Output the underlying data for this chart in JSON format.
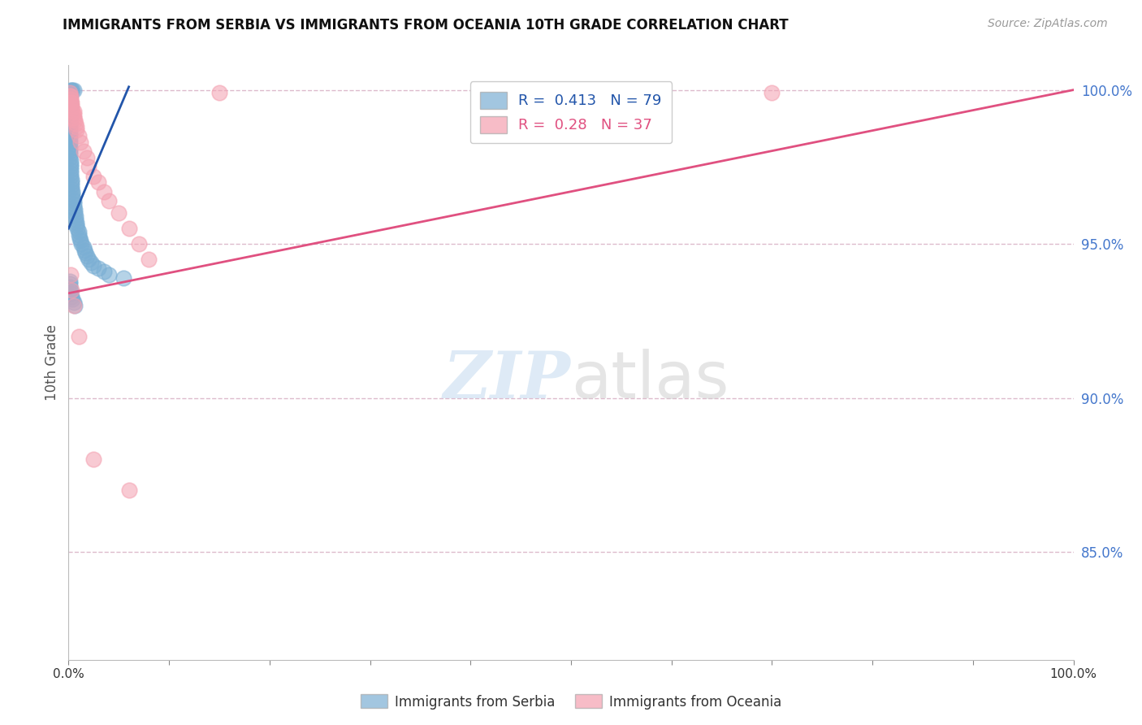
{
  "title": "IMMIGRANTS FROM SERBIA VS IMMIGRANTS FROM OCEANIA 10TH GRADE CORRELATION CHART",
  "source": "Source: ZipAtlas.com",
  "ylabel": "10th Grade",
  "xlim": [
    0,
    1.0
  ],
  "ylim": [
    0.815,
    1.008
  ],
  "yticks": [
    0.85,
    0.9,
    0.95,
    1.0
  ],
  "ytick_labels": [
    "85.0%",
    "90.0%",
    "95.0%",
    "100.0%"
  ],
  "xticks": [
    0.0,
    0.1,
    0.2,
    0.3,
    0.4,
    0.5,
    0.6,
    0.7,
    0.8,
    0.9,
    1.0
  ],
  "xtick_labels_show": [
    "0.0%",
    "",
    "",
    "",
    "",
    "",
    "",
    "",
    "",
    "",
    "100.0%"
  ],
  "serbia_R": 0.413,
  "serbia_N": 79,
  "oceania_R": 0.28,
  "oceania_N": 37,
  "serbia_color": "#7bafd4",
  "oceania_color": "#f4a0b0",
  "blue_line_color": "#2255aa",
  "pink_line_color": "#e05080",
  "grid_color": "#ddbbcc",
  "serbia_x": [
    0.002,
    0.003,
    0.004,
    0.005,
    0.001,
    0.001,
    0.001,
    0.001,
    0.001,
    0.001,
    0.001,
    0.001,
    0.001,
    0.001,
    0.001,
    0.001,
    0.001,
    0.001,
    0.001,
    0.001,
    0.001,
    0.001,
    0.001,
    0.001,
    0.001,
    0.001,
    0.001,
    0.001,
    0.001,
    0.001,
    0.001,
    0.002,
    0.002,
    0.002,
    0.002,
    0.002,
    0.002,
    0.003,
    0.003,
    0.003,
    0.003,
    0.004,
    0.004,
    0.004,
    0.005,
    0.005,
    0.005,
    0.006,
    0.006,
    0.007,
    0.007,
    0.008,
    0.008,
    0.009,
    0.01,
    0.01,
    0.011,
    0.012,
    0.013,
    0.015,
    0.016,
    0.017,
    0.018,
    0.02,
    0.022,
    0.025,
    0.03,
    0.035,
    0.04,
    0.055,
    0.001,
    0.001,
    0.001,
    0.002,
    0.002,
    0.003,
    0.004,
    0.005,
    0.006
  ],
  "serbia_y": [
    1.0,
    1.0,
    1.0,
    1.0,
    0.999,
    0.999,
    0.998,
    0.998,
    0.997,
    0.997,
    0.996,
    0.996,
    0.995,
    0.995,
    0.994,
    0.993,
    0.992,
    0.991,
    0.99,
    0.989,
    0.988,
    0.987,
    0.986,
    0.985,
    0.984,
    0.983,
    0.982,
    0.981,
    0.98,
    0.979,
    0.978,
    0.977,
    0.976,
    0.975,
    0.974,
    0.973,
    0.972,
    0.971,
    0.97,
    0.969,
    0.968,
    0.967,
    0.966,
    0.965,
    0.964,
    0.963,
    0.962,
    0.961,
    0.96,
    0.959,
    0.958,
    0.957,
    0.956,
    0.955,
    0.954,
    0.953,
    0.952,
    0.951,
    0.95,
    0.949,
    0.948,
    0.947,
    0.946,
    0.945,
    0.944,
    0.943,
    0.942,
    0.941,
    0.94,
    0.939,
    0.938,
    0.937,
    0.936,
    0.935,
    0.934,
    0.933,
    0.932,
    0.931,
    0.93
  ],
  "oceania_x": [
    0.001,
    0.001,
    0.002,
    0.002,
    0.002,
    0.003,
    0.003,
    0.003,
    0.004,
    0.005,
    0.005,
    0.005,
    0.006,
    0.007,
    0.008,
    0.008,
    0.01,
    0.012,
    0.015,
    0.018,
    0.02,
    0.025,
    0.03,
    0.035,
    0.04,
    0.05,
    0.06,
    0.07,
    0.08,
    0.002,
    0.003,
    0.005,
    0.01,
    0.025,
    0.06,
    0.15,
    0.7
  ],
  "oceania_y": [
    0.999,
    0.998,
    0.998,
    0.997,
    0.996,
    0.996,
    0.995,
    0.994,
    0.993,
    0.993,
    0.992,
    0.991,
    0.99,
    0.989,
    0.988,
    0.987,
    0.985,
    0.983,
    0.98,
    0.978,
    0.975,
    0.972,
    0.97,
    0.967,
    0.964,
    0.96,
    0.955,
    0.95,
    0.945,
    0.94,
    0.935,
    0.93,
    0.92,
    0.88,
    0.87,
    0.999,
    0.999
  ],
  "blue_trendline_x": [
    0.0,
    0.06
  ],
  "blue_trendline_y": [
    0.955,
    1.001
  ],
  "pink_trendline_x": [
    0.0,
    1.0
  ],
  "pink_trendline_y": [
    0.934,
    1.0
  ]
}
